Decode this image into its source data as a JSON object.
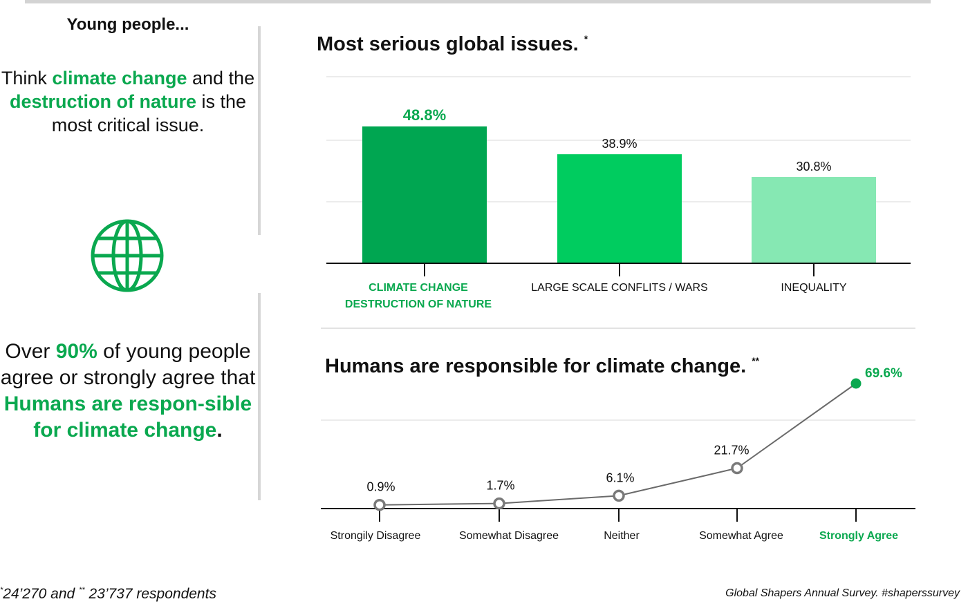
{
  "left_panel": {
    "title": "Young people...",
    "p1": [
      {
        "text": "Think ",
        "hl": false
      },
      {
        "text": "climate change",
        "hl": true
      },
      {
        "text": " and the ",
        "hl": false
      },
      {
        "text": "destruction of nature",
        "hl": true
      },
      {
        "text": " is the most critical issue.",
        "hl": false
      }
    ],
    "p2": [
      {
        "text": "Over ",
        "hl": false
      },
      {
        "text": "90%",
        "hl": true
      },
      {
        "text": " of young people agree or strongly agree that ",
        "hl": false
      },
      {
        "text": "Humans are respon-sible for climate change",
        "hl": true
      },
      {
        "text": ".",
        "hl": false,
        "bold": true
      }
    ],
    "icon": "globe-icon"
  },
  "colors": {
    "accent": "#0aa84f",
    "bar_dark": "#00a651",
    "bar_mid": "#00cc5f",
    "bar_light": "#86e8b3",
    "line": "#6a6a6a",
    "marker": "#7a7a7a",
    "grid": "#e6e6e6"
  },
  "chart_data": [
    {
      "type": "bar",
      "title": "Most serious global issues.",
      "title_marker": "*",
      "categories": [
        [
          "CLIMATE CHANGE",
          "DESTRUCTION OF NATURE"
        ],
        [
          "LARGE SCALE CONFLITS / WARS"
        ],
        [
          "INEQUALITY"
        ]
      ],
      "values": [
        48.8,
        38.9,
        30.8
      ],
      "value_labels": [
        "48.8%",
        "38.9%",
        "30.8%"
      ],
      "highlight_index": 0,
      "ylim": [
        0,
        60
      ],
      "grid": true,
      "xlabel": "",
      "ylabel": ""
    },
    {
      "type": "line",
      "title": "Humans are responsible for climate change.",
      "title_marker": "**",
      "categories": [
        "Strongily Disagree",
        "Somewhat Disagree",
        "Neither",
        "Somewhat Agree",
        "Strongly Agree"
      ],
      "values": [
        0.9,
        1.7,
        6.1,
        21.7,
        69.6
      ],
      "value_labels": [
        "0.9%",
        "1.7%",
        "6.1%",
        "21.7%",
        "69.6%"
      ],
      "highlight_index": 4,
      "ylim": [
        0,
        80
      ],
      "grid": true,
      "xlabel": "",
      "ylabel": ""
    }
  ],
  "footnotes": {
    "left": {
      "m1": "*",
      "t1": "24’270 and  ",
      "m2": "**",
      "t2": " 23’737 respondents"
    },
    "right": "Global Shapers Annual Survey.  #shaperssurvey"
  }
}
